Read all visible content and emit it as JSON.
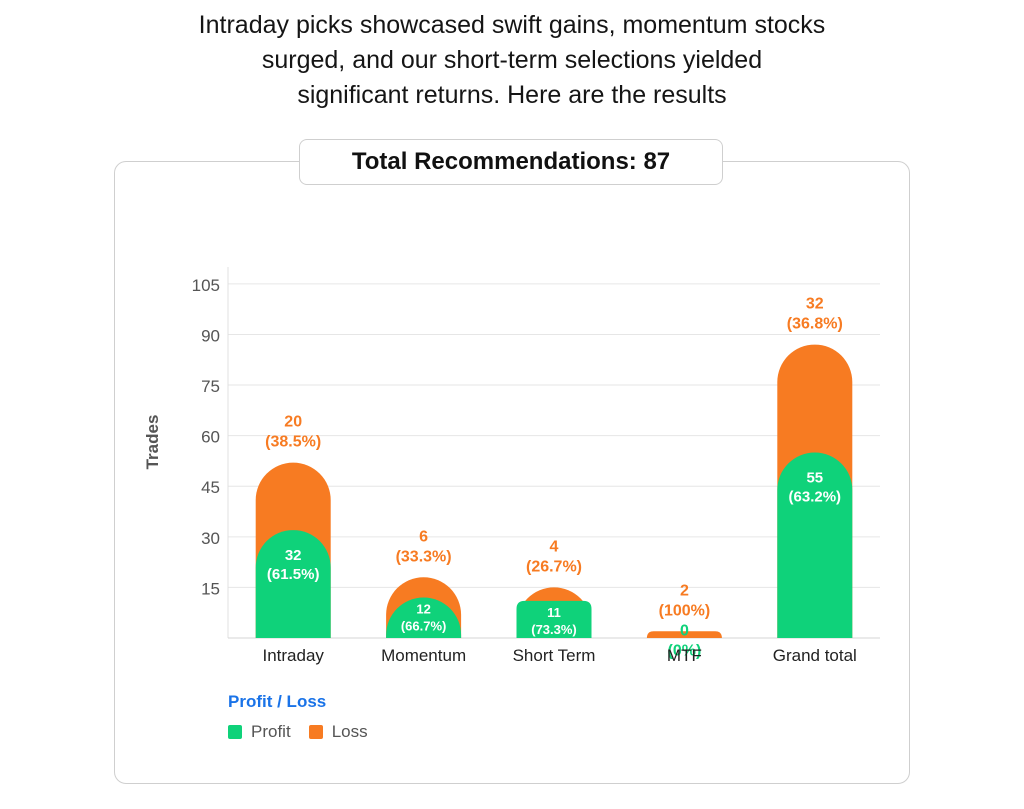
{
  "intro": {
    "lines": [
      "Intraday picks showcased swift gains, momentum stocks",
      "surged, and our short-term selections yielded",
      "significant returns. Here are the results"
    ]
  },
  "total_label": "Total Recommendations: 87",
  "legend": {
    "title": "Profit / Loss",
    "profit_label": "Profit",
    "loss_label": "Loss"
  },
  "colors": {
    "profit": "#0fd27a",
    "loss": "#f77b22",
    "grid": "#e6e6e6",
    "axis_text": "#555555"
  },
  "chart_data": {
    "type": "bar",
    "stacked": true,
    "ylabel": "Trades",
    "xlabel": "",
    "ylim": [
      0,
      105
    ],
    "yticks": [
      15,
      30,
      45,
      60,
      75,
      90,
      105
    ],
    "grid": true,
    "legend_position": "bottom-left",
    "categories": [
      "Intraday",
      "Momentum",
      "Short Term",
      "MTF",
      "Grand total"
    ],
    "series": [
      {
        "name": "Profit",
        "values": [
          32,
          12,
          11,
          0,
          55
        ],
        "labels": [
          [
            "32",
            "(61.5%)"
          ],
          [
            "12",
            "(66.7%)"
          ],
          [
            "11",
            "(73.3%)"
          ],
          [
            "0",
            "(0%)"
          ],
          [
            "55",
            "(63.2%)"
          ]
        ]
      },
      {
        "name": "Loss",
        "values": [
          20,
          6,
          4,
          2,
          32
        ],
        "labels": [
          [
            "20",
            "(38.5%)"
          ],
          [
            "6",
            "(33.3%)"
          ],
          [
            "4",
            "(26.7%)"
          ],
          [
            "2",
            "(100%)"
          ],
          [
            "32",
            "(36.8%)"
          ]
        ]
      }
    ]
  }
}
